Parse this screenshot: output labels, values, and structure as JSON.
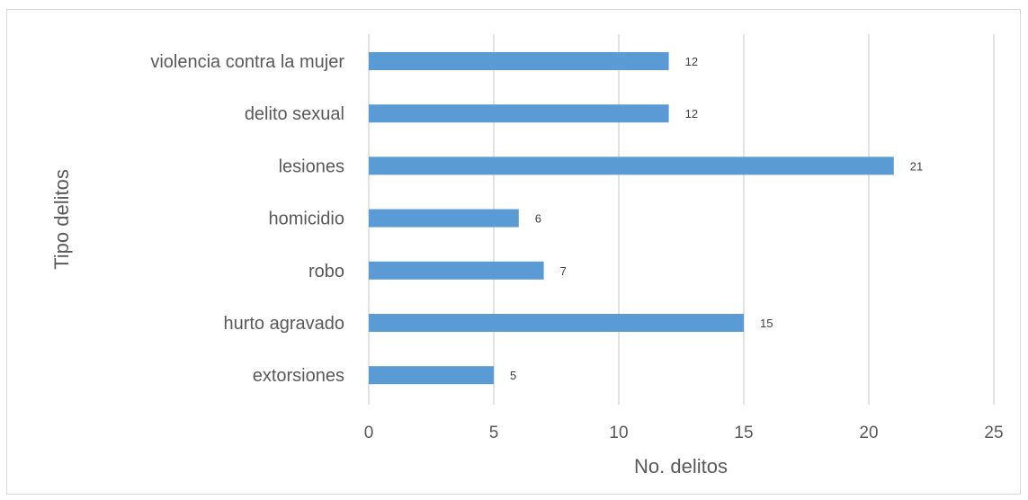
{
  "chart_data": {
    "type": "bar",
    "orientation": "horizontal",
    "categories": [
      "violencia contra la mujer",
      "delito sexual",
      "lesiones",
      "homicidio",
      "robo",
      "hurto agravado",
      "extorsiones"
    ],
    "values": [
      12,
      12,
      21,
      6,
      7,
      15,
      5
    ],
    "data_labels": [
      "12",
      "12",
      "21",
      "6",
      "7",
      "15",
      "5"
    ],
    "xlabel": "No. delitos",
    "ylabel": "Tipo delitos",
    "xlim": [
      0,
      25
    ],
    "xticks": [
      0,
      5,
      10,
      15,
      20,
      25
    ],
    "xtick_labels": [
      "0",
      "5",
      "10",
      "15",
      "20",
      "25"
    ],
    "grid": "vertical",
    "legend": "none",
    "bar_color": "#5b9bd5",
    "grid_color": "#d9d9d9"
  }
}
